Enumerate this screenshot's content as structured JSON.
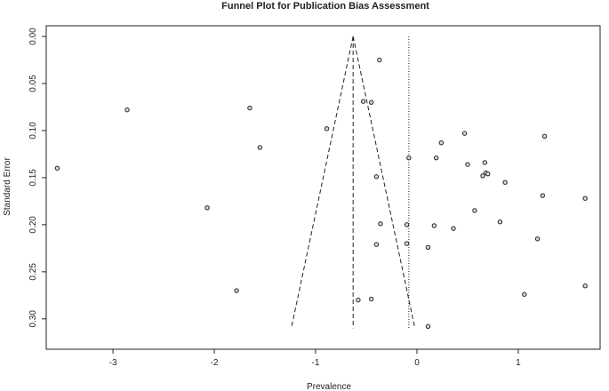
{
  "chart_data": {
    "type": "scatter",
    "title": "Funnel Plot for Publication Bias Assessment",
    "xlabel": "Prevalence",
    "ylabel": "Standard Error",
    "xlim": [
      -3.65,
      1.72
    ],
    "ylim": [
      0.0,
      0.32
    ],
    "y_reversed": true,
    "y_tick_orientation": "vertical",
    "grid": false,
    "legend": "none",
    "x_ticks": [
      -3,
      -2,
      -1,
      0,
      1
    ],
    "x_tick_labels": [
      "-3",
      "-2",
      "-1",
      "0",
      "1"
    ],
    "y_ticks": [
      0.0,
      0.05,
      0.1,
      0.15,
      0.2,
      0.25,
      0.3
    ],
    "y_tick_labels": [
      "0.00",
      "0.05",
      "0.10",
      "0.15",
      "0.20",
      "0.25",
      "0.30"
    ],
    "pooled_estimate": -0.63,
    "funnel_apex_se": 0.0,
    "funnel_base_se": 0.31,
    "funnel_left_at_base": -1.24,
    "funnel_right_at_base": -0.02,
    "reference_line": -0.08,
    "colors": {
      "axis": "#222222",
      "points": "#222222",
      "funnel": "#222222"
    },
    "points": [
      {
        "x": -0.37,
        "y": 0.025
      },
      {
        "x": -0.53,
        "y": 0.069
      },
      {
        "x": -0.45,
        "y": 0.07
      },
      {
        "x": -1.65,
        "y": 0.076
      },
      {
        "x": -2.86,
        "y": 0.078
      },
      {
        "x": -0.89,
        "y": 0.098
      },
      {
        "x": 0.47,
        "y": 0.103
      },
      {
        "x": 1.26,
        "y": 0.106
      },
      {
        "x": 0.24,
        "y": 0.113
      },
      {
        "x": -1.55,
        "y": 0.118
      },
      {
        "x": -0.08,
        "y": 0.129
      },
      {
        "x": 0.19,
        "y": 0.129
      },
      {
        "x": 0.67,
        "y": 0.134
      },
      {
        "x": 0.5,
        "y": 0.136
      },
      {
        "x": -3.55,
        "y": 0.14
      },
      {
        "x": 0.68,
        "y": 0.145
      },
      {
        "x": 0.7,
        "y": 0.146
      },
      {
        "x": 0.65,
        "y": 0.148
      },
      {
        "x": -0.4,
        "y": 0.149
      },
      {
        "x": 0.87,
        "y": 0.155
      },
      {
        "x": 1.24,
        "y": 0.169
      },
      {
        "x": 1.66,
        "y": 0.172
      },
      {
        "x": -2.07,
        "y": 0.182
      },
      {
        "x": 0.57,
        "y": 0.185
      },
      {
        "x": 0.82,
        "y": 0.197
      },
      {
        "x": -0.36,
        "y": 0.199
      },
      {
        "x": -0.1,
        "y": 0.2
      },
      {
        "x": 0.17,
        "y": 0.201
      },
      {
        "x": 0.36,
        "y": 0.204
      },
      {
        "x": 1.19,
        "y": 0.215
      },
      {
        "x": -0.1,
        "y": 0.22
      },
      {
        "x": -0.4,
        "y": 0.221
      },
      {
        "x": 0.11,
        "y": 0.224
      },
      {
        "x": 1.66,
        "y": 0.265
      },
      {
        "x": -1.78,
        "y": 0.27
      },
      {
        "x": 1.06,
        "y": 0.274
      },
      {
        "x": -0.45,
        "y": 0.279
      },
      {
        "x": -0.58,
        "y": 0.28
      },
      {
        "x": 0.11,
        "y": 0.308
      }
    ]
  }
}
